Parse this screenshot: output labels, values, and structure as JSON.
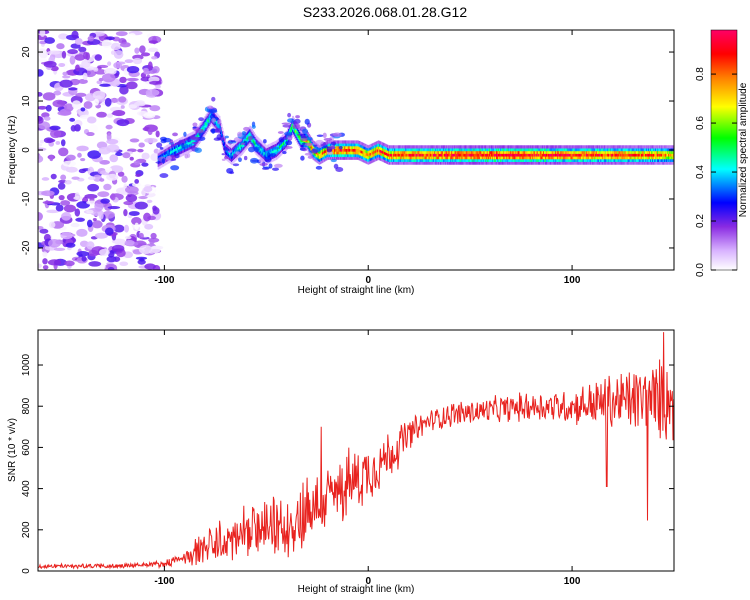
{
  "title": "S233.2026.068.01.28.G12",
  "chart_data": [
    {
      "type": "heatmap",
      "title": "S233.2026.068.01.28.G12",
      "xlabel": "Height of straight line (km)",
      "ylabel": "Frequency (Hz)",
      "xlim": [
        -162,
        150
      ],
      "ylim": [
        -24.5,
        24.5
      ],
      "x_ticks": [
        -100,
        0,
        100
      ],
      "x_tick_labels": [
        "-100",
        "0",
        "100"
      ],
      "y_ticks": [
        -20,
        -10,
        0,
        10,
        20
      ],
      "y_tick_labels": [
        "-20",
        "-10",
        "0",
        "10",
        "20"
      ],
      "colorbar": {
        "label": "Normalized spectral amplitude",
        "range": [
          0,
          0.98
        ],
        "ticks": [
          0.0,
          0.2,
          0.4,
          0.6,
          0.8
        ],
        "tick_labels": [
          "0.0",
          "0.2",
          "0.4",
          "0.6",
          "0.8"
        ],
        "colormap": [
          "#ffffff",
          "#cc99ff",
          "#8a2be2",
          "#0000ff",
          "#00ffff",
          "#00ff00",
          "#ffff00",
          "#ff8000",
          "#ff0000",
          "#ff0066"
        ]
      },
      "noise_region": {
        "x_range": [
          -162,
          -103
        ],
        "freq_range": [
          -24.5,
          24.5
        ],
        "amplitude": 0.15
      },
      "signal_track": {
        "x": [
          -103,
          -95,
          -90,
          -85,
          -80,
          -77,
          -73,
          -70,
          -67,
          -62,
          -58,
          -55,
          -50,
          -45,
          -40,
          -37,
          -33,
          -30,
          -27,
          -24,
          -20,
          -15,
          -10,
          -5,
          0,
          5,
          10,
          20,
          30,
          50,
          80,
          100,
          120,
          140,
          150
        ],
        "frequency": [
          -2,
          0,
          1,
          2,
          5,
          7,
          5,
          0,
          -1,
          1,
          3,
          1,
          -1,
          0,
          2,
          5,
          2,
          2,
          0,
          -1,
          0,
          0,
          0,
          0,
          -1,
          0,
          -1,
          -1,
          -1,
          -1,
          -1,
          -1,
          -1,
          -1,
          -1
        ],
        "amplitude": [
          0.35,
          0.4,
          0.45,
          0.45,
          0.5,
          0.45,
          0.4,
          0.35,
          0.4,
          0.45,
          0.5,
          0.45,
          0.4,
          0.45,
          0.5,
          0.55,
          0.6,
          0.75,
          0.8,
          0.75,
          0.85,
          0.9,
          0.9,
          0.85,
          0.8,
          0.85,
          0.85,
          0.9,
          0.9,
          0.95,
          0.95,
          0.9,
          0.9,
          0.85,
          0.75
        ]
      }
    },
    {
      "type": "line",
      "xlabel": "Height of straight line (km)",
      "ylabel": "SNR (10 * v/v)",
      "xlim": [
        -162,
        150
      ],
      "ylim": [
        0,
        1170
      ],
      "x_ticks": [
        -100,
        0,
        100
      ],
      "x_tick_labels": [
        "-100",
        "0",
        "100"
      ],
      "y_ticks": [
        0,
        200,
        400,
        600,
        800,
        1000
      ],
      "y_tick_labels": [
        "0",
        "200",
        "400",
        "600",
        "800",
        "1000"
      ],
      "line_color": "#e8231f",
      "envelope": {
        "x": [
          -162,
          -120,
          -100,
          -90,
          -85,
          -80,
          -70,
          -60,
          -50,
          -40,
          -35,
          -30,
          -25,
          -20,
          -10,
          0,
          10,
          20,
          30,
          40,
          60,
          80,
          100,
          110,
          120,
          130,
          140,
          150
        ],
        "mean": [
          22,
          25,
          35,
          60,
          95,
          110,
          140,
          180,
          200,
          210,
          250,
          300,
          320,
          350,
          420,
          480,
          560,
          660,
          730,
          760,
          780,
          800,
          800,
          810,
          820,
          830,
          830,
          830
        ],
        "spread": [
          10,
          12,
          15,
          30,
          70,
          90,
          110,
          120,
          130,
          140,
          160,
          200,
          150,
          160,
          160,
          140,
          120,
          80,
          50,
          60,
          60,
          70,
          80,
          110,
          140,
          160,
          180,
          200
        ]
      },
      "spikes": [
        {
          "x": -23,
          "value": 700
        },
        {
          "x": 117,
          "value": 410
        },
        {
          "x": 137,
          "value": 245
        },
        {
          "x": 145,
          "value": 1160
        }
      ]
    }
  ]
}
